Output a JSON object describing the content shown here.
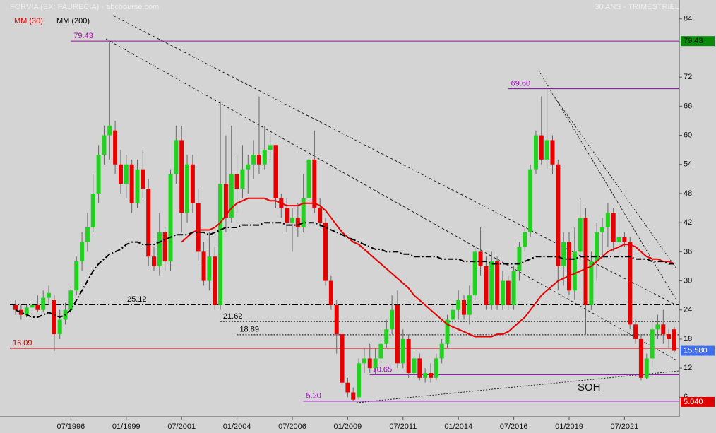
{
  "chart_data": {
    "type": "candlestick",
    "title": "FORVIA (EX: FAURECIA) - abcbourse.com",
    "subtitle": "30 ANS - TRIMESTRIEL",
    "up_color": "#1fd31f",
    "down_color": "#e60000",
    "x": [
      "01/1994",
      "04/1994",
      "07/1994",
      "10/1994",
      "01/1995",
      "04/1995",
      "07/1995",
      "10/1995",
      "01/1996",
      "04/1996",
      "07/1996",
      "10/1996",
      "01/1997",
      "04/1997",
      "07/1997",
      "10/1997",
      "01/1998",
      "04/1998",
      "07/1998",
      "10/1998",
      "01/1999",
      "04/1999",
      "07/1999",
      "10/1999",
      "01/2000",
      "04/2000",
      "07/2000",
      "10/2000",
      "01/2001",
      "04/2001",
      "07/2001",
      "10/2001",
      "01/2002",
      "04/2002",
      "07/2002",
      "10/2002",
      "01/2003",
      "04/2003",
      "07/2003",
      "10/2003",
      "01/2004",
      "04/2004",
      "07/2004",
      "10/2004",
      "01/2005",
      "04/2005",
      "07/2005",
      "10/2005",
      "01/2006",
      "04/2006",
      "07/2006",
      "10/2006",
      "01/2007",
      "04/2007",
      "07/2007",
      "10/2007",
      "01/2008",
      "04/2008",
      "07/2008",
      "10/2008",
      "01/2009",
      "04/2009",
      "07/2009",
      "10/2009",
      "01/2010",
      "04/2010",
      "07/2010",
      "10/2010",
      "01/2011",
      "04/2011",
      "07/2011",
      "10/2011",
      "01/2012",
      "04/2012",
      "07/2012",
      "10/2012",
      "01/2013",
      "04/2013",
      "07/2013",
      "10/2013",
      "01/2014",
      "04/2014",
      "07/2014",
      "10/2014",
      "01/2015",
      "04/2015",
      "07/2015",
      "10/2015",
      "01/2016",
      "04/2016",
      "07/2016",
      "10/2016",
      "01/2017",
      "04/2017",
      "07/2017",
      "10/2017",
      "01/2018",
      "04/2018",
      "07/2018",
      "10/2018",
      "01/2019",
      "04/2019",
      "07/2019",
      "10/2019",
      "01/2020",
      "04/2020",
      "07/2020",
      "10/2020",
      "01/2021",
      "04/2021",
      "07/2021",
      "10/2021",
      "01/2022",
      "04/2022",
      "07/2022",
      "10/2022",
      "01/2023",
      "04/2023",
      "07/2023",
      "10/2023"
    ],
    "open": [
      25,
      24,
      23,
      24.5,
      25,
      24,
      26.5,
      26,
      19,
      22,
      24,
      28,
      34,
      38,
      41,
      48,
      56,
      60,
      61,
      54,
      50,
      54,
      46,
      53,
      49,
      35,
      33,
      40,
      34,
      52,
      59,
      44,
      54,
      46,
      36,
      30,
      35,
      25,
      50,
      43,
      52,
      49,
      53,
      54,
      56,
      54,
      57,
      58,
      47,
      45,
      42,
      43,
      41,
      47,
      55,
      45,
      42,
      30,
      25,
      19,
      9,
      7,
      6,
      13,
      14,
      12,
      14,
      17,
      20,
      25,
      13,
      18,
      11,
      14,
      10,
      11,
      10,
      14,
      17,
      22,
      24,
      26,
      23,
      27,
      36,
      33,
      25,
      34,
      25,
      30,
      25,
      32,
      37,
      40,
      53,
      60,
      55,
      59,
      54,
      33,
      38,
      28,
      36,
      43,
      25,
      34,
      40,
      41,
      44,
      38,
      39,
      38,
      21,
      18,
      10,
      14,
      20,
      21,
      19,
      20
    ],
    "high": [
      26,
      25,
      25,
      26,
      27,
      28,
      29,
      27,
      24,
      25.5,
      29,
      35,
      40,
      44,
      52,
      58,
      62,
      79.43,
      63,
      57,
      56,
      55,
      55,
      57,
      51,
      37,
      44,
      41,
      53,
      62,
      62,
      56,
      56,
      49,
      38,
      40,
      37,
      67,
      60,
      62,
      56,
      58,
      56,
      59,
      68,
      62,
      60,
      58,
      48,
      47,
      45,
      46,
      52,
      57,
      61,
      47,
      43,
      31,
      26,
      20,
      10,
      8,
      14,
      16,
      17,
      16,
      20,
      22,
      27,
      28,
      20,
      19,
      15,
      15,
      12,
      13,
      15,
      18,
      23,
      25,
      28,
      27,
      29,
      37,
      41,
      35,
      36,
      35,
      32,
      31,
      33,
      38,
      41,
      54,
      61,
      68,
      69.6,
      60,
      55,
      40,
      40,
      41,
      47,
      45,
      36,
      42,
      43,
      46,
      45,
      44,
      40,
      39,
      22,
      19,
      15,
      22,
      23,
      24,
      20,
      20.5
    ],
    "low": [
      23,
      22,
      22.5,
      23,
      23.5,
      23.5,
      25,
      15.5,
      18,
      21,
      23,
      27,
      32,
      36,
      40,
      46,
      54,
      55,
      52,
      48,
      47,
      44,
      45,
      47,
      33,
      32,
      31,
      32,
      32,
      50,
      40,
      42,
      44,
      34,
      29,
      28,
      24,
      24,
      40,
      42,
      44,
      47,
      48,
      51,
      52,
      53,
      55,
      45,
      43,
      40,
      36,
      39,
      40,
      46,
      44,
      41,
      29,
      24,
      15,
      8,
      6,
      5.2,
      5.5,
      11,
      11,
      10.65,
      13,
      16,
      19,
      12,
      12,
      10,
      10,
      9.5,
      9,
      9,
      9.5,
      13,
      16,
      20,
      22,
      22,
      21,
      26,
      31,
      24,
      24,
      24,
      24,
      24,
      24,
      30,
      36,
      39,
      52,
      54,
      53,
      52,
      28,
      29,
      27,
      26,
      34,
      19,
      24,
      30,
      35,
      37,
      36,
      35,
      37,
      20,
      17,
      9.5,
      9.8,
      12,
      18,
      17,
      16,
      15.2
    ],
    "close": [
      24,
      23,
      24.5,
      25,
      24,
      26.5,
      27.5,
      19,
      22,
      24,
      28,
      34,
      38,
      41,
      48,
      56,
      60,
      62,
      54,
      50,
      54,
      46,
      53,
      49,
      35,
      33,
      40,
      34,
      52,
      59,
      44,
      54,
      46,
      36,
      30,
      35,
      25,
      50,
      43,
      52,
      49,
      53,
      54,
      56,
      54,
      57,
      58,
      47,
      45,
      42,
      43,
      41,
      47,
      55,
      45,
      42,
      30,
      25,
      19,
      9,
      7,
      5.5,
      13,
      14,
      12,
      14,
      17,
      20,
      24,
      13,
      18,
      11,
      14,
      10,
      11,
      10,
      14,
      17,
      22,
      24,
      26,
      23,
      27,
      36,
      33,
      25,
      34,
      25,
      30,
      25,
      32,
      37,
      40,
      53,
      60,
      55,
      59,
      54,
      33,
      38,
      28,
      36,
      43,
      25,
      34,
      40,
      41,
      44,
      38,
      39,
      38,
      21,
      18,
      10,
      14,
      20,
      21,
      19,
      18,
      15.58
    ],
    "series": [
      {
        "name": "MM (30)",
        "color": "#e60000",
        "values": [
          null,
          null,
          null,
          null,
          null,
          null,
          null,
          null,
          null,
          null,
          null,
          null,
          null,
          null,
          null,
          null,
          null,
          null,
          null,
          null,
          null,
          null,
          null,
          null,
          null,
          null,
          null,
          null,
          null,
          null,
          38,
          39,
          40,
          40.5,
          40.5,
          40.5,
          41,
          42,
          43.5,
          45,
          46,
          46.5,
          47,
          47,
          47,
          47,
          46.5,
          46.5,
          46,
          45.5,
          45.5,
          45.5,
          46,
          46,
          46,
          45.5,
          44.5,
          43,
          41.5,
          40,
          39,
          38,
          37.5,
          36.5,
          35.5,
          34.5,
          33.5,
          32.5,
          31.5,
          30.5,
          29.5,
          28.5,
          27,
          26,
          25,
          24,
          23,
          22,
          21,
          20.5,
          20,
          19.5,
          19,
          18.5,
          18.5,
          18.5,
          18.5,
          19,
          19,
          19.5,
          20.5,
          21.5,
          22.5,
          24,
          25.5,
          27,
          28,
          29,
          30,
          30.5,
          31,
          31.5,
          32,
          32.5,
          33,
          34,
          35,
          36,
          36.5,
          37,
          37.5,
          37.5,
          37,
          36,
          35,
          34.5,
          34.5,
          34,
          34,
          33.5
        ]
      },
      {
        "name": "MM (200)",
        "color": "#000000",
        "values": [
          24,
          23.5,
          23,
          22.5,
          22.5,
          23,
          23.5,
          23,
          22.5,
          23,
          24,
          26,
          28,
          30,
          32,
          33.5,
          34.5,
          35.5,
          36,
          36.5,
          37.5,
          38,
          38,
          37.5,
          37.5,
          37.5,
          38,
          38.5,
          39,
          39.5,
          39.5,
          39.5,
          40,
          40,
          40,
          39.5,
          40,
          40.5,
          41,
          41,
          41,
          41.5,
          41.5,
          41.5,
          41.5,
          42,
          42,
          42,
          42,
          41.5,
          41.5,
          41.5,
          42,
          42,
          42,
          41.5,
          41,
          40.5,
          40,
          39.5,
          39,
          38.5,
          38,
          37.5,
          37,
          36.5,
          36.5,
          36,
          36,
          36,
          35.5,
          35.5,
          35,
          35,
          35,
          35,
          35,
          34.5,
          34.5,
          34.5,
          34.5,
          34,
          34,
          34,
          34,
          34,
          33.5,
          33.5,
          33.5,
          33.5,
          33.5,
          33.5,
          34,
          34.5,
          35,
          35,
          35,
          35,
          35,
          34.5,
          34.5,
          34.5,
          35,
          35,
          35,
          35,
          35,
          35,
          35,
          35,
          35,
          35,
          34.5,
          34.5,
          34.5,
          34,
          34,
          34,
          33.5,
          33.5
        ]
      }
    ],
    "ylim": [
      2.7,
      87.9
    ],
    "yticks": [
      84,
      72,
      66,
      60,
      54,
      48,
      42,
      36,
      30,
      24,
      18,
      12,
      6
    ],
    "xticks": [
      "07/1996",
      "01/1999",
      "07/2001",
      "01/2004",
      "07/2006",
      "01/2009",
      "07/2011",
      "01/2014",
      "07/2016",
      "01/2019",
      "07/2021"
    ],
    "levels": [
      {
        "value": 79.43,
        "color": "#b000b0",
        "from": "10/1996"
      },
      {
        "value": 69.6,
        "label": "69.60",
        "color": "#9000b0",
        "from": "07/2016"
      },
      {
        "value": 25.12,
        "color": "#000000",
        "from": "01/1994"
      },
      {
        "value": 21.62,
        "color": "#000000",
        "from": "07/2003"
      },
      {
        "value": 18.89,
        "color": "#000000",
        "from": "04/2004"
      },
      {
        "value": 16.09,
        "color": "#c00000",
        "from": "01/1994"
      },
      {
        "value": 10.65,
        "color": "#9000b0",
        "from": "04/2010"
      },
      {
        "value": 5.2,
        "label": "5.20",
        "color": "#9000b0",
        "from": "04/2007"
      }
    ],
    "price_tags": [
      {
        "value": 79.43,
        "color": "#0a8a0a"
      },
      {
        "value": 15.58,
        "label": "15.580",
        "color": "#3f6ff0"
      },
      {
        "value": 5.04,
        "label": "5.040",
        "color": "#e00000"
      }
    ],
    "annotation": "SOH"
  }
}
